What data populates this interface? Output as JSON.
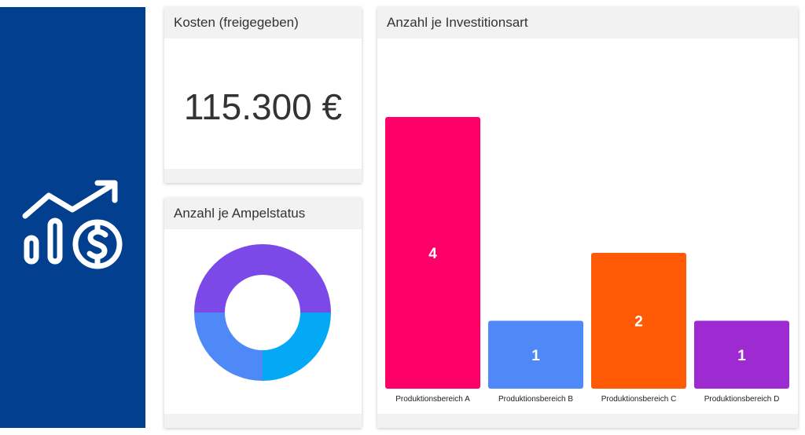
{
  "kpi": {
    "title": "Kosten (freigegeben)",
    "value": "115.300 €"
  },
  "donut": {
    "title": "Anzahl je Ampelstatus"
  },
  "bar": {
    "title": "Anzahl je Investitionsart"
  },
  "chart_data": [
    {
      "type": "pie",
      "title": "Anzahl je Ampelstatus",
      "donut": true,
      "slices": [
        {
          "value": 2,
          "color": "#7b49e8"
        },
        {
          "value": 1,
          "color": "#03a9f4"
        },
        {
          "value": 1,
          "color": "#4f89f7"
        }
      ]
    },
    {
      "type": "bar",
      "title": "Anzahl je Investitionsart",
      "categories": [
        "Produktionsbereich A",
        "Produktionsbereich B",
        "Produktionsbereich C",
        "Produktionsbereich D"
      ],
      "values": [
        4,
        1,
        2,
        1
      ],
      "colors": [
        "#ff0069",
        "#4f89f7",
        "#ff5a05",
        "#9d2bd1"
      ],
      "ylim": [
        0,
        4
      ]
    }
  ]
}
